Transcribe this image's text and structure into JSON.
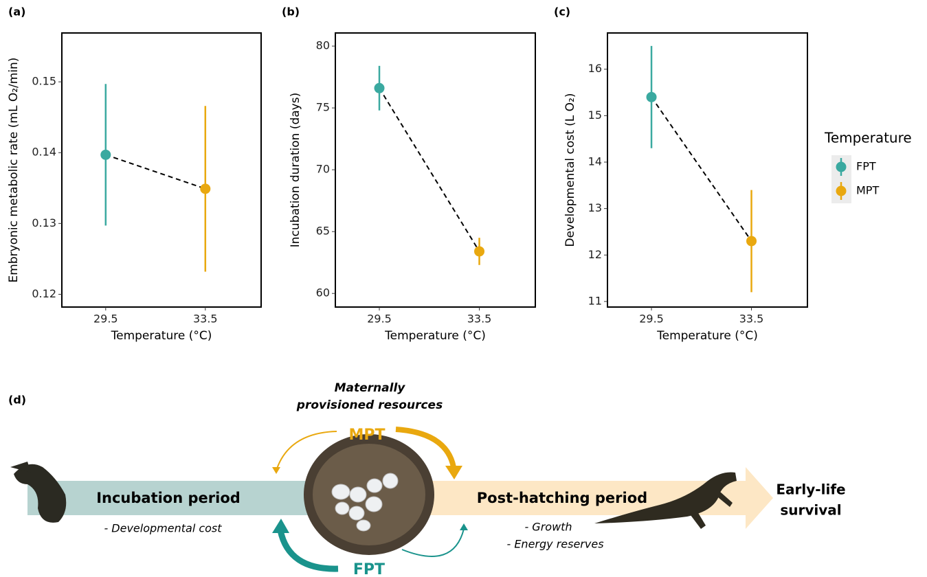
{
  "chart_data": [
    {
      "type": "pointrange",
      "title": "(a)",
      "y_label": "Embryonic metabolic rate (mL O₂/min)",
      "x_label": "Temperature (°C)",
      "categories": [
        "29.5",
        "33.5"
      ],
      "series": [
        {
          "name": "FPT",
          "color": "#3aa9a0",
          "values": [
            0.1397,
            null
          ],
          "errors": [
            0.01,
            null
          ]
        },
        {
          "name": "MPT",
          "color": "#e9a80f",
          "values": [
            null,
            0.1349
          ],
          "errors": [
            null,
            0.0117
          ]
        }
      ],
      "connect_means": true,
      "ylim": [
        0.1182,
        0.1569
      ],
      "yticks": [
        0.12,
        0.13,
        0.14,
        0.15
      ]
    },
    {
      "type": "pointrange",
      "title": "(b)",
      "y_label": "Incubation duration (days)",
      "x_label": "Temperature (°C)",
      "categories": [
        "29.5",
        "33.5"
      ],
      "series": [
        {
          "name": "FPT",
          "color": "#3aa9a0",
          "values": [
            76.6,
            null
          ],
          "errors": [
            1.8,
            null
          ]
        },
        {
          "name": "MPT",
          "color": "#e9a80f",
          "values": [
            null,
            63.4
          ],
          "errors": [
            null,
            1.1
          ]
        }
      ],
      "connect_means": true,
      "ylim": [
        58.9,
        81.06
      ],
      "yticks": [
        60,
        65,
        70,
        75,
        80
      ]
    },
    {
      "type": "pointrange",
      "title": "(c)",
      "y_label": "Developmental cost (L O₂)",
      "x_label": "Temperature (°C)",
      "categories": [
        "29.5",
        "33.5"
      ],
      "series": [
        {
          "name": "FPT",
          "color": "#3aa9a0",
          "values": [
            15.4,
            null
          ],
          "errors": [
            1.1,
            null
          ]
        },
        {
          "name": "MPT",
          "color": "#e9a80f",
          "values": [
            null,
            12.3
          ],
          "errors": [
            null,
            1.1
          ]
        }
      ],
      "connect_means": true,
      "ylim": [
        10.88,
        16.78
      ],
      "yticks": [
        11,
        12,
        13,
        14,
        15,
        16
      ],
      "legend_title": "Temperature"
    }
  ],
  "diagram": {
    "label": "(d)",
    "resources": [
      "Maternally",
      "provisioned resources"
    ],
    "mpt": "MPT",
    "fpt": "FPT",
    "incubation": "Incubation period",
    "incubation_note": "- Developmental cost",
    "post_hatching": "Post-hatching period",
    "post_notes": [
      "- Growth",
      "- Energy reserves"
    ],
    "outcome": [
      "Early-life",
      "survival"
    ]
  }
}
